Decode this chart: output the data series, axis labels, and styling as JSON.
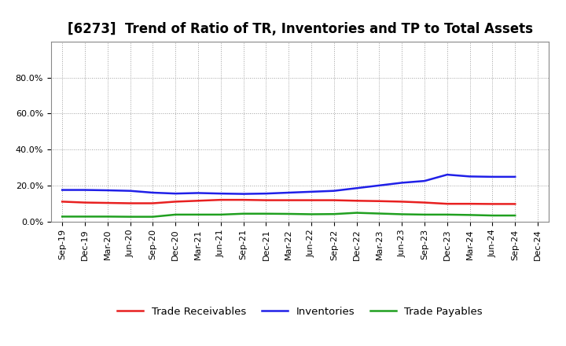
{
  "title": "[6273]  Trend of Ratio of TR, Inventories and TP to Total Assets",
  "x_labels": [
    "Sep-19",
    "Dec-19",
    "Mar-20",
    "Jun-20",
    "Sep-20",
    "Dec-20",
    "Mar-21",
    "Jun-21",
    "Sep-21",
    "Dec-21",
    "Mar-22",
    "Jun-22",
    "Sep-22",
    "Dec-22",
    "Mar-23",
    "Jun-23",
    "Sep-23",
    "Dec-23",
    "Mar-24",
    "Jun-24",
    "Sep-24",
    "Dec-24"
  ],
  "trade_receivables": [
    0.11,
    0.105,
    0.103,
    0.101,
    0.101,
    0.11,
    0.115,
    0.12,
    0.12,
    0.118,
    0.118,
    0.118,
    0.118,
    0.115,
    0.113,
    0.11,
    0.105,
    0.098,
    0.098,
    0.097,
    0.097,
    null
  ],
  "inventories": [
    0.175,
    0.175,
    0.173,
    0.17,
    0.16,
    0.155,
    0.158,
    0.155,
    0.153,
    0.155,
    0.16,
    0.165,
    0.17,
    0.185,
    0.2,
    0.215,
    0.225,
    0.26,
    0.25,
    0.248,
    0.248,
    null
  ],
  "trade_payables": [
    0.027,
    0.027,
    0.027,
    0.026,
    0.026,
    0.038,
    0.038,
    0.038,
    0.043,
    0.043,
    0.042,
    0.04,
    0.041,
    0.048,
    0.044,
    0.04,
    0.038,
    0.038,
    0.036,
    0.033,
    0.033,
    null
  ],
  "ylim": [
    0,
    1.0
  ],
  "yticks": [
    0.0,
    0.2,
    0.4,
    0.6,
    0.8
  ],
  "ytick_labels": [
    "0.0%",
    "20.0%",
    "40.0%",
    "60.0%",
    "80.0%"
  ],
  "color_tr": "#e82020",
  "color_inv": "#2020e8",
  "color_tp": "#20a020",
  "background_color": "#ffffff",
  "plot_bg_color": "#ffffff",
  "grid_color": "#a0a0a0",
  "title_fontsize": 12,
  "legend_fontsize": 9.5,
  "tick_fontsize": 8
}
